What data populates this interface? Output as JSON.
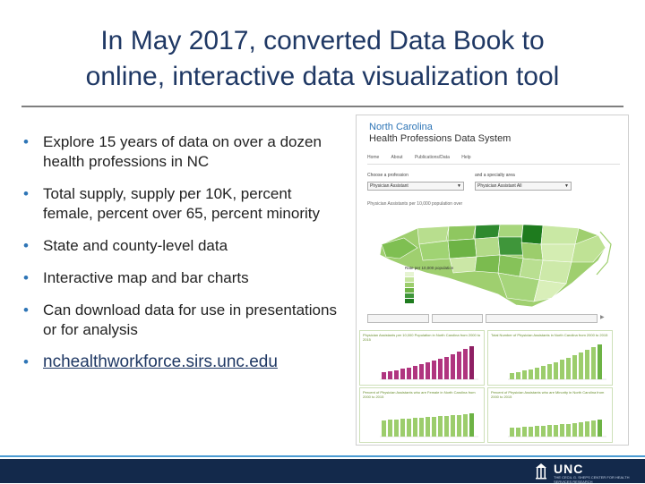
{
  "slide": {
    "title_line1": "In May 2017, converted Data Book to",
    "title_line2": "online, interactive data visualization tool"
  },
  "bullets": [
    {
      "text": "Explore 15 years of data on over a dozen health professions in NC"
    },
    {
      "text": "Total supply, supply per 10K, percent female, percent over 65, percent minority"
    },
    {
      "text": "State and county-level data"
    },
    {
      "text": "Interactive map and bar charts"
    },
    {
      "text": "Can download data for use in presentations or for analysis"
    },
    {
      "text": "nchealthworkforce.sirs.unc.edu",
      "is_link": true
    }
  ],
  "screenshot": {
    "title_line1": "North Carolina",
    "title_line2": "Health Professions Data System",
    "nav": [
      "Home",
      "About",
      "Publications/Data",
      "Help"
    ],
    "select1_label": "Choose a profession",
    "select1_value": "Physician Assistant",
    "select2_label": "and a specialty area",
    "select2_value": "Physician Assistant All",
    "map_caption": "Physician Assistants per 10,000 population over",
    "legend_title": "Rate per 10,000 population",
    "cards": [
      {
        "title": "Physician Assistants per 10,000 Population in North Carolina from 2000 to 2015"
      },
      {
        "title": "Total Number of Physician Assistants in North Carolina from 2000 to 2015"
      },
      {
        "title": "Percent of Physician Assistants who are Female in North Carolina from 2000 to 2015"
      },
      {
        "title": "Percent of Physician Assistants who are Minority in North Carolina from 2000 to 2015"
      }
    ]
  },
  "footer": {
    "logo_text": "UNC",
    "sub_text": "THE CECIL G. SHEPS CENTER FOR HEALTH SERVICES RESEARCH"
  },
  "colors": {
    "title": "#1f3864",
    "bullet": "#2e75b6",
    "footer_bg": "#13294b",
    "map_dark": "#1e7b1e",
    "map_light": "#d9efb9",
    "bar": "#b0357f"
  }
}
